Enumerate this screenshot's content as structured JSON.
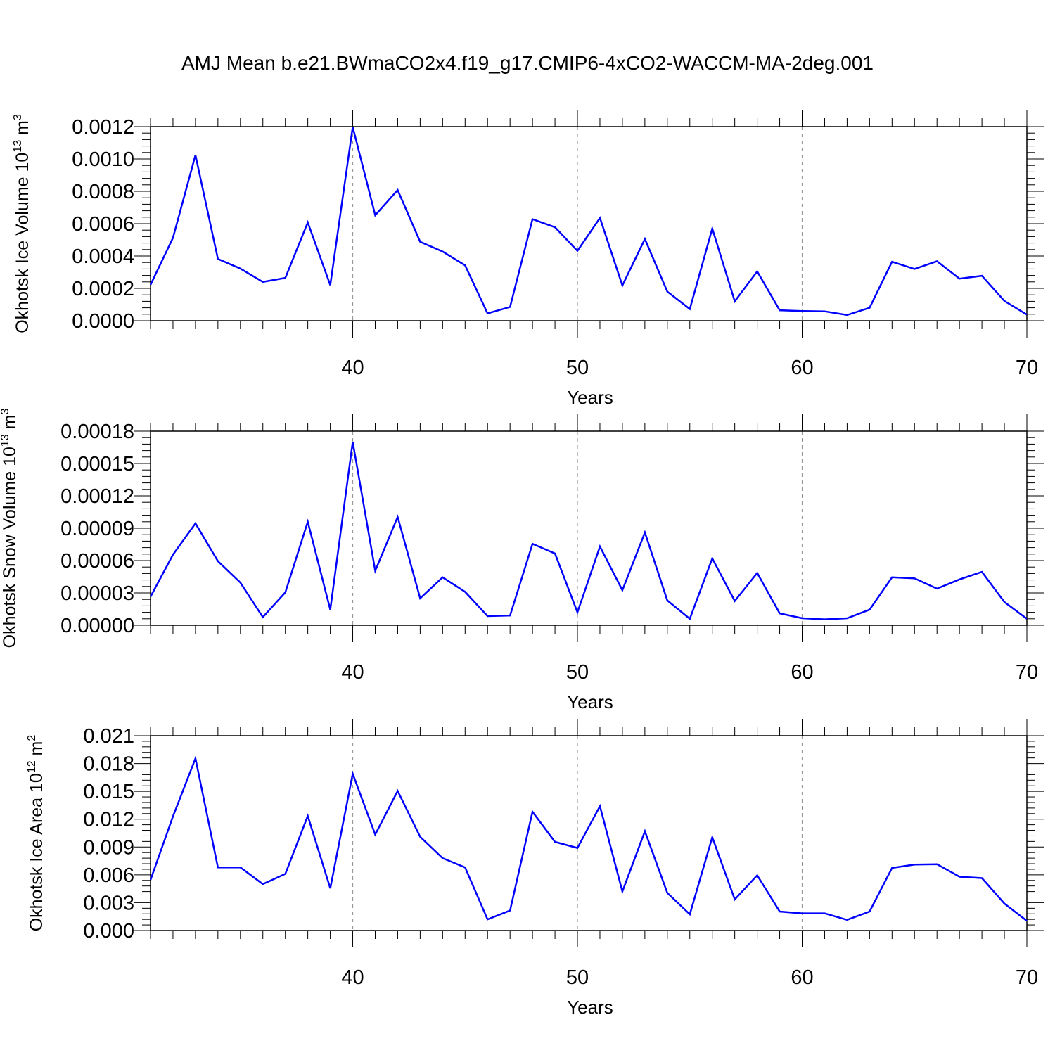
{
  "title": "AMJ Mean b.e21.BWmaCO2x4.f19_g17.CMIP6-4xCO2-WACCM-MA-2deg.001",
  "colors": {
    "line": "#0000ff",
    "grid": "#999999",
    "axis": "#000000"
  },
  "chart_data": [
    {
      "type": "line",
      "xlabel": "Years",
      "ylabel": "Okhotsk Ice Volume 10",
      "ylabel_exp": "13",
      "ylabel_unit": "m",
      "ylabel_unit_exp": "3",
      "xlim": [
        31,
        70
      ],
      "ylim": [
        0,
        0.0012
      ],
      "xticks": [
        40,
        50,
        60,
        70
      ],
      "yticks": [
        "0.0000",
        "0.0002",
        "0.0004",
        "0.0006",
        "0.0008",
        "0.0010",
        "0.0012"
      ],
      "grid": "vertical-dashed",
      "x": [
        31,
        32,
        33,
        34,
        35,
        36,
        37,
        38,
        39,
        40,
        41,
        42,
        43,
        44,
        45,
        46,
        47,
        48,
        49,
        50,
        51,
        52,
        53,
        54,
        55,
        56,
        57,
        58,
        59,
        60,
        61,
        62,
        63,
        64,
        65,
        66,
        67,
        68,
        69,
        70
      ],
      "values": [
        0.000222,
        0.000512,
        0.001024,
        0.000382,
        0.000322,
        0.00024,
        0.000265,
        0.000608,
        0.00022,
        0.001198,
        0.000652,
        0.000808,
        0.000488,
        0.000428,
        0.000342,
        4.5e-05,
        8.5e-05,
        0.000628,
        0.000578,
        0.000432,
        0.000635,
        0.000218,
        0.000505,
        0.00018,
        7.2e-05,
        0.00057,
        0.00012,
        0.000305,
        6.5e-05,
        6e-05,
        5.8e-05,
        3.5e-05,
        8e-05,
        0.000365,
        0.00032,
        0.000368,
        0.00026,
        0.000278,
        0.000122,
        3.8e-05
      ]
    },
    {
      "type": "line",
      "xlabel": "Years",
      "ylabel": "Okhotsk Snow Volume 10",
      "ylabel_exp": "13",
      "ylabel_unit": "m",
      "ylabel_unit_exp": "3",
      "xlim": [
        31,
        70
      ],
      "ylim": [
        0,
        0.00018
      ],
      "xticks": [
        40,
        50,
        60,
        70
      ],
      "yticks": [
        "0.00000",
        "0.00003",
        "0.00006",
        "0.00009",
        "0.00012",
        "0.00015",
        "0.00018"
      ],
      "grid": "vertical-dashed",
      "x": [
        31,
        32,
        33,
        34,
        35,
        36,
        37,
        38,
        39,
        40,
        41,
        42,
        43,
        44,
        45,
        46,
        47,
        48,
        49,
        50,
        51,
        52,
        53,
        54,
        55,
        56,
        57,
        58,
        59,
        60,
        61,
        62,
        63,
        64,
        65,
        66,
        67,
        68,
        69,
        70
      ],
      "values": [
        2.65e-05,
        6.55e-05,
        9.45e-05,
        5.95e-05,
        3.95e-05,
        7.5e-06,
        3.05e-05,
        9.6e-05,
        1.45e-05,
        0.00017,
        5.05e-05,
        0.0001005,
        2.5e-05,
        4.45e-05,
        3.1e-05,
        8.5e-06,
        9e-06,
        7.55e-05,
        6.65e-05,
        1.2e-05,
        7.3e-05,
        3.25e-05,
        8.6e-05,
        2.3e-05,
        6e-06,
        6.2e-05,
        2.25e-05,
        4.85e-05,
        1.1e-05,
        6.5e-06,
        5.5e-06,
        6.5e-06,
        1.45e-05,
        4.45e-05,
        4.35e-05,
        3.4e-05,
        4.25e-05,
        4.95e-05,
        2.15e-05,
        6e-06
      ]
    },
    {
      "type": "line",
      "xlabel": "Years",
      "ylabel": "Okhotsk Ice Area 10",
      "ylabel_exp": "12",
      "ylabel_unit": "m",
      "ylabel_unit_exp": "2",
      "xlim": [
        31,
        70
      ],
      "ylim": [
        0,
        0.021
      ],
      "xticks": [
        40,
        50,
        60,
        70
      ],
      "yticks": [
        "0.000",
        "0.003",
        "0.006",
        "0.009",
        "0.012",
        "0.015",
        "0.018",
        "0.021"
      ],
      "grid": "vertical-dashed",
      "x": [
        31,
        32,
        33,
        34,
        35,
        36,
        37,
        38,
        39,
        40,
        41,
        42,
        43,
        44,
        45,
        46,
        47,
        48,
        49,
        50,
        51,
        52,
        53,
        54,
        55,
        56,
        57,
        58,
        59,
        60,
        61,
        62,
        63,
        64,
        65,
        66,
        67,
        68,
        69,
        70
      ],
      "values": [
        0.00545,
        0.0123,
        0.01855,
        0.0068,
        0.0068,
        0.005,
        0.0061,
        0.01235,
        0.00455,
        0.0169,
        0.01035,
        0.01505,
        0.0101,
        0.0078,
        0.0068,
        0.0012,
        0.00215,
        0.0128,
        0.00955,
        0.0089,
        0.0134,
        0.0042,
        0.0107,
        0.00405,
        0.00175,
        0.01005,
        0.00335,
        0.00595,
        0.00205,
        0.00185,
        0.00185,
        0.00115,
        0.00205,
        0.00675,
        0.0071,
        0.00715,
        0.0058,
        0.00565,
        0.0029,
        0.00105
      ]
    }
  ]
}
